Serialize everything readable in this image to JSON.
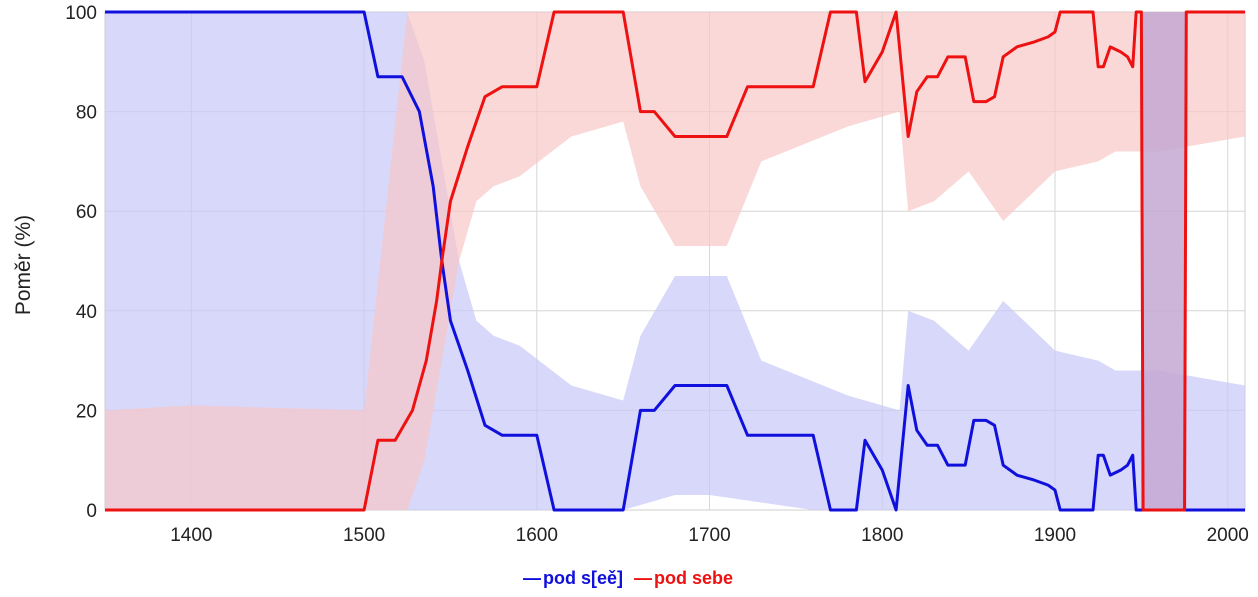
{
  "chart_data": {
    "type": "line",
    "ylabel": "Poměr (%)",
    "xlim": [
      1350,
      2010
    ],
    "ylim": [
      0,
      100
    ],
    "xticks": [
      "1400",
      "1500",
      "1600",
      "1700",
      "1800",
      "1900",
      "2000"
    ],
    "yticks": [
      "0",
      "20",
      "40",
      "60",
      "80",
      "100"
    ],
    "grid": true,
    "legend_position": "bottom-center",
    "series": [
      {
        "name": "pod s[eě]",
        "color": "#1010dd",
        "band_color": "#c8c8f8",
        "points": [
          [
            1350,
            100
          ],
          [
            1500,
            100
          ],
          [
            1508,
            87
          ],
          [
            1522,
            87
          ],
          [
            1532,
            80
          ],
          [
            1540,
            65
          ],
          [
            1545,
            50
          ],
          [
            1550,
            38
          ],
          [
            1560,
            28
          ],
          [
            1570,
            17
          ],
          [
            1580,
            15
          ],
          [
            1600,
            15
          ],
          [
            1610,
            0
          ],
          [
            1650,
            0
          ],
          [
            1660,
            20
          ],
          [
            1668,
            20
          ],
          [
            1680,
            25
          ],
          [
            1710,
            25
          ],
          [
            1722,
            15
          ],
          [
            1760,
            15
          ],
          [
            1770,
            0
          ],
          [
            1785,
            0
          ],
          [
            1790,
            14
          ],
          [
            1800,
            8
          ],
          [
            1808,
            0
          ],
          [
            1815,
            25
          ],
          [
            1820,
            16
          ],
          [
            1826,
            13
          ],
          [
            1832,
            13
          ],
          [
            1838,
            9
          ],
          [
            1848,
            9
          ],
          [
            1853,
            18
          ],
          [
            1860,
            18
          ],
          [
            1865,
            17
          ],
          [
            1870,
            9
          ],
          [
            1878,
            7
          ],
          [
            1888,
            6
          ],
          [
            1896,
            5
          ],
          [
            1900,
            4
          ],
          [
            1903,
            0
          ],
          [
            1922,
            0
          ],
          [
            1925,
            11
          ],
          [
            1928,
            11
          ],
          [
            1932,
            7
          ],
          [
            1938,
            8
          ],
          [
            1942,
            9
          ],
          [
            1945,
            11
          ],
          [
            1947,
            0
          ],
          [
            2010,
            0
          ]
        ],
        "band_low": [
          [
            1350,
            0
          ],
          [
            1525,
            0
          ],
          [
            1568,
            0
          ],
          [
            1650,
            0
          ],
          [
            1680,
            3
          ],
          [
            1700,
            3
          ],
          [
            1760,
            0
          ],
          [
            1900,
            0
          ],
          [
            2010,
            0
          ]
        ],
        "band_high": [
          [
            1350,
            100
          ],
          [
            1510,
            100
          ],
          [
            1525,
            100
          ],
          [
            1535,
            90
          ],
          [
            1545,
            70
          ],
          [
            1555,
            50
          ],
          [
            1565,
            38
          ],
          [
            1575,
            35
          ],
          [
            1590,
            33
          ],
          [
            1620,
            25
          ],
          [
            1650,
            22
          ],
          [
            1660,
            35
          ],
          [
            1680,
            47
          ],
          [
            1710,
            47
          ],
          [
            1730,
            30
          ],
          [
            1780,
            23
          ],
          [
            1810,
            20
          ],
          [
            1815,
            40
          ],
          [
            1830,
            38
          ],
          [
            1850,
            32
          ],
          [
            1870,
            42
          ],
          [
            1900,
            32
          ],
          [
            1925,
            30
          ],
          [
            1935,
            28
          ],
          [
            1960,
            28
          ],
          [
            2010,
            25
          ]
        ]
      },
      {
        "name": "pod sebe",
        "color": "#ee1111",
        "band_color": "#f8c8c8",
        "points": [
          [
            1350,
            0
          ],
          [
            1500,
            0
          ],
          [
            1508,
            14
          ],
          [
            1518,
            14
          ],
          [
            1528,
            20
          ],
          [
            1536,
            30
          ],
          [
            1542,
            42
          ],
          [
            1545,
            50
          ],
          [
            1550,
            62
          ],
          [
            1560,
            73
          ],
          [
            1570,
            83
          ],
          [
            1580,
            85
          ],
          [
            1600,
            85
          ],
          [
            1610,
            100
          ],
          [
            1650,
            100
          ],
          [
            1660,
            80
          ],
          [
            1668,
            80
          ],
          [
            1680,
            75
          ],
          [
            1710,
            75
          ],
          [
            1722,
            85
          ],
          [
            1760,
            85
          ],
          [
            1770,
            100
          ],
          [
            1785,
            100
          ],
          [
            1790,
            86
          ],
          [
            1800,
            92
          ],
          [
            1808,
            100
          ],
          [
            1815,
            75
          ],
          [
            1820,
            84
          ],
          [
            1826,
            87
          ],
          [
            1832,
            87
          ],
          [
            1838,
            91
          ],
          [
            1848,
            91
          ],
          [
            1853,
            82
          ],
          [
            1860,
            82
          ],
          [
            1865,
            83
          ],
          [
            1870,
            91
          ],
          [
            1878,
            93
          ],
          [
            1888,
            94
          ],
          [
            1896,
            95
          ],
          [
            1900,
            96
          ],
          [
            1903,
            100
          ],
          [
            1922,
            100
          ],
          [
            1925,
            89
          ],
          [
            1928,
            89
          ],
          [
            1932,
            93
          ],
          [
            1938,
            92
          ],
          [
            1942,
            91
          ],
          [
            1945,
            89
          ],
          [
            1947,
            100
          ],
          [
            1950,
            100
          ],
          [
            1951,
            0
          ],
          [
            1975,
            0
          ],
          [
            1976,
            100
          ],
          [
            2010,
            100
          ]
        ],
        "band_low": [
          [
            1350,
            0
          ],
          [
            1510,
            0
          ],
          [
            1525,
            0
          ],
          [
            1535,
            10
          ],
          [
            1545,
            30
          ],
          [
            1555,
            50
          ],
          [
            1565,
            62
          ],
          [
            1575,
            65
          ],
          [
            1590,
            67
          ],
          [
            1620,
            75
          ],
          [
            1650,
            78
          ],
          [
            1660,
            65
          ],
          [
            1680,
            53
          ],
          [
            1710,
            53
          ],
          [
            1730,
            70
          ],
          [
            1780,
            77
          ],
          [
            1810,
            80
          ],
          [
            1815,
            60
          ],
          [
            1830,
            62
          ],
          [
            1850,
            68
          ],
          [
            1870,
            58
          ],
          [
            1900,
            68
          ],
          [
            1925,
            70
          ],
          [
            1935,
            72
          ],
          [
            1960,
            72
          ],
          [
            2010,
            75
          ]
        ],
        "band_high": [
          [
            1350,
            20
          ],
          [
            1400,
            21
          ],
          [
            1500,
            20
          ],
          [
            1525,
            100
          ],
          [
            2010,
            100
          ]
        ]
      }
    ],
    "highlight": {
      "x": [
        1950,
        1976
      ],
      "color": "#c4a8d4"
    }
  }
}
